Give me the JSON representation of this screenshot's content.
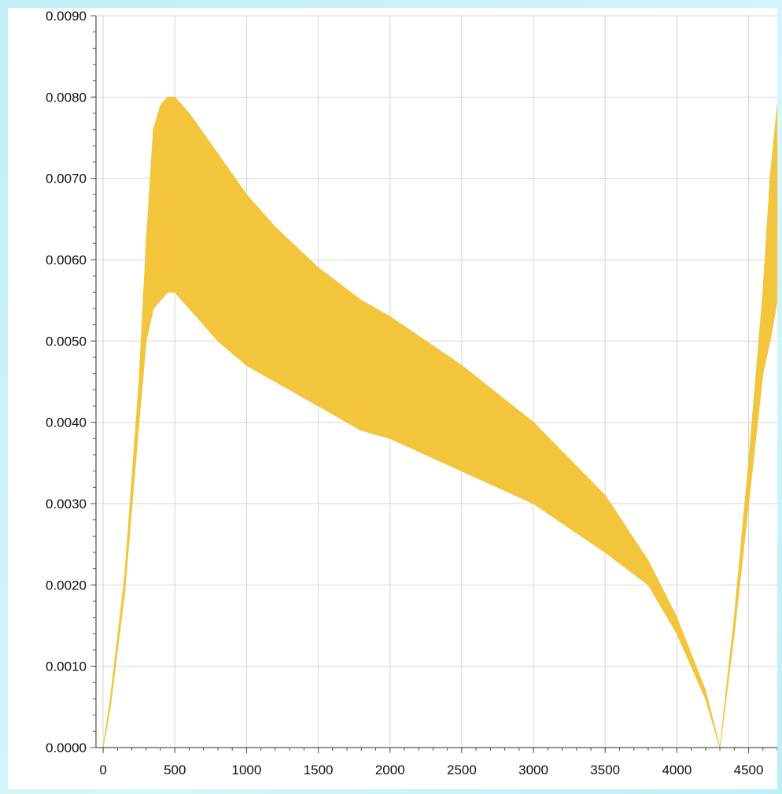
{
  "chart_data": {
    "type": "area",
    "title": "",
    "xlabel": "",
    "ylabel": "",
    "xlim": [
      -50,
      4700
    ],
    "ylim": [
      0,
      0.009
    ],
    "xticks": [
      "0",
      "500",
      "1000",
      "1500",
      "2000",
      "2500",
      "3000",
      "3500",
      "4000",
      "4500"
    ],
    "yticks": [
      "0.0000",
      "0.0010",
      "0.0020",
      "0.0030",
      "0.0040",
      "0.0050",
      "0.0060",
      "0.0070",
      "0.0080",
      "0.0090"
    ],
    "grid": true,
    "fill_color": "#f2c53d",
    "series": [
      {
        "role": "band",
        "x": [
          0,
          50,
          150,
          250,
          300,
          350,
          400,
          450,
          500,
          600,
          800,
          1000,
          1200,
          1500,
          1800,
          2000,
          2500,
          3000,
          3500,
          3800,
          4000,
          4200,
          4300
        ],
        "upper": [
          0,
          0.0006,
          0.0021,
          0.0045,
          0.0062,
          0.0076,
          0.0079,
          0.008,
          0.008,
          0.0078,
          0.0073,
          0.0068,
          0.0064,
          0.0059,
          0.0055,
          0.0053,
          0.0047,
          0.004,
          0.0031,
          0.0023,
          0.0016,
          0.0007,
          0.0
        ],
        "lower": [
          0,
          0.0005,
          0.0019,
          0.004,
          0.005,
          0.0054,
          0.0055,
          0.0056,
          0.0056,
          0.0054,
          0.005,
          0.0047,
          0.0045,
          0.0042,
          0.0039,
          0.0038,
          0.0034,
          0.003,
          0.0024,
          0.002,
          0.0014,
          0.0006,
          0.0
        ]
      },
      {
        "role": "band",
        "x": [
          4300,
          4400,
          4500,
          4600,
          4650,
          4700
        ],
        "upper": [
          0.0,
          0.0016,
          0.0035,
          0.0056,
          0.007,
          0.0079
        ],
        "lower": [
          0.0,
          0.0014,
          0.003,
          0.0046,
          0.005,
          0.0055
        ]
      }
    ]
  }
}
